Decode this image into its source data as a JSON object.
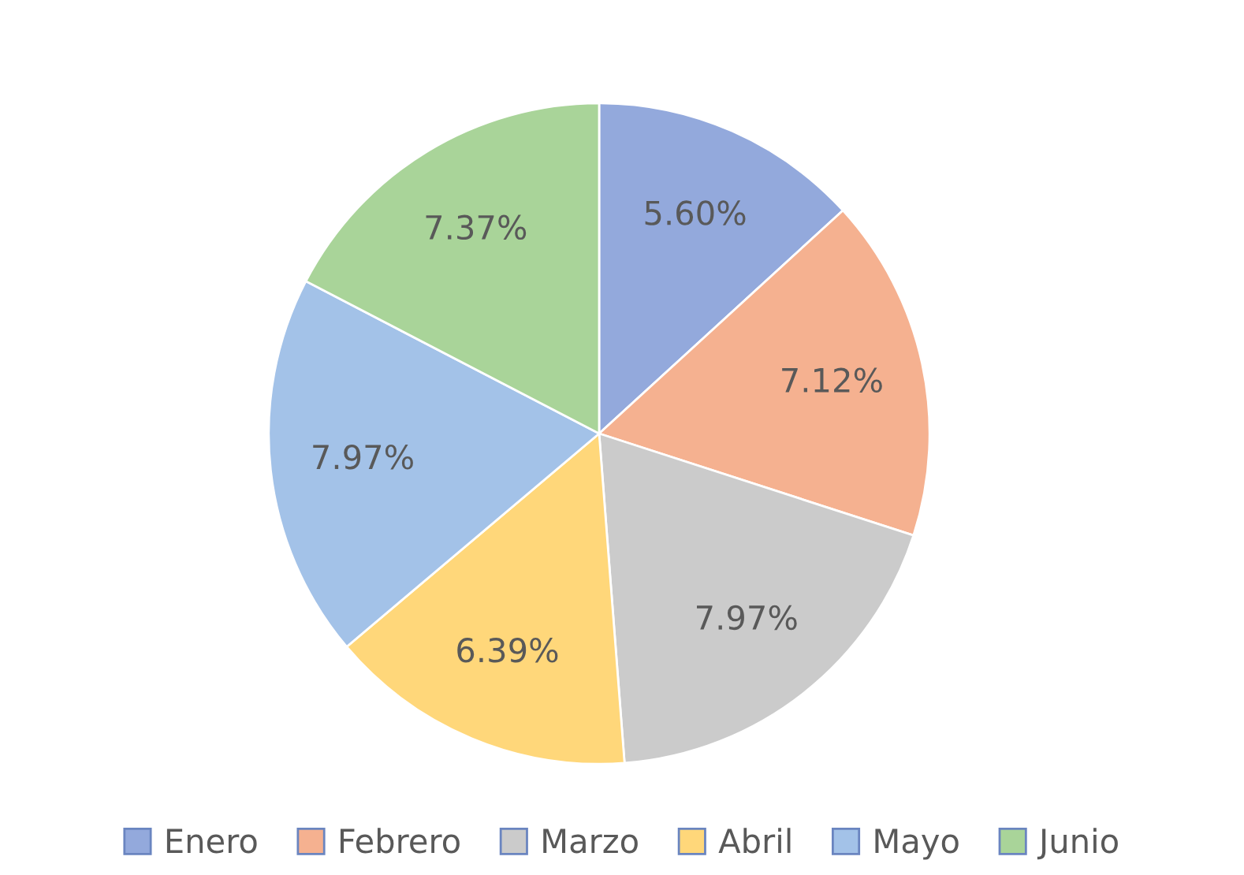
{
  "chart_data": {
    "type": "pie",
    "categories": [
      "Enero",
      "Febrero",
      "Marzo",
      "Abril",
      "Mayo",
      "Junio"
    ],
    "values": [
      5.6,
      7.12,
      7.97,
      6.39,
      7.97,
      7.37
    ],
    "value_labels": [
      "5.60%",
      "7.12%",
      "7.97%",
      "6.39%",
      "7.97%",
      "7.37%"
    ],
    "colors": [
      "#93a9dc",
      "#f5b190",
      "#cbcbcb",
      "#ffd77a",
      "#a3c2e8",
      "#a9d499"
    ],
    "legend": "bottom"
  }
}
